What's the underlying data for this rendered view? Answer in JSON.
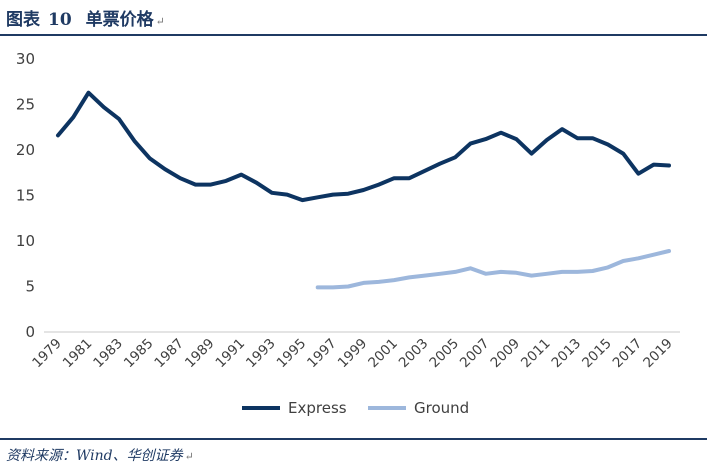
{
  "header": {
    "figure_label": "图表",
    "figure_number": "10",
    "title": "单票价格",
    "para_mark": "↵"
  },
  "footer": {
    "source": "资料来源：Wind、华创证券",
    "para_mark": "↵"
  },
  "chart_data": {
    "type": "line",
    "ylim": [
      0,
      30
    ],
    "yticks": [
      0,
      5,
      10,
      15,
      20,
      25,
      30
    ],
    "xlim": [
      1979,
      2019
    ],
    "xticks": [
      "1979",
      "1981",
      "1983",
      "1985",
      "1987",
      "1989",
      "1991",
      "1993",
      "1995",
      "1997",
      "1999",
      "2001",
      "2003",
      "2005",
      "2007",
      "2009",
      "2011",
      "2013",
      "2015",
      "2017",
      "2019"
    ],
    "grid": false,
    "legend_position": "bottom-center",
    "series": [
      {
        "name": "Express",
        "color": "#0d3461",
        "points": [
          [
            1979,
            21.6
          ],
          [
            1980,
            23.6
          ],
          [
            1981,
            26.3
          ],
          [
            1982,
            24.7
          ],
          [
            1983,
            23.4
          ],
          [
            1984,
            21.0
          ],
          [
            1985,
            19.1
          ],
          [
            1986,
            17.9
          ],
          [
            1987,
            16.9
          ],
          [
            1988,
            16.2
          ],
          [
            1989,
            16.2
          ],
          [
            1990,
            16.6
          ],
          [
            1991,
            17.3
          ],
          [
            1992,
            16.4
          ],
          [
            1993,
            15.3
          ],
          [
            1994,
            15.1
          ],
          [
            1995,
            14.5
          ],
          [
            1996,
            14.8
          ],
          [
            1997,
            15.1
          ],
          [
            1998,
            15.2
          ],
          [
            1999,
            15.6
          ],
          [
            2000,
            16.2
          ],
          [
            2001,
            16.9
          ],
          [
            2002,
            16.9
          ],
          [
            2003,
            17.7
          ],
          [
            2004,
            18.5
          ],
          [
            2005,
            19.2
          ],
          [
            2006,
            20.7
          ],
          [
            2007,
            21.2
          ],
          [
            2008,
            21.9
          ],
          [
            2009,
            21.2
          ],
          [
            2010,
            19.6
          ],
          [
            2011,
            21.1
          ],
          [
            2012,
            22.3
          ],
          [
            2013,
            21.3
          ],
          [
            2014,
            21.3
          ],
          [
            2015,
            20.6
          ],
          [
            2016,
            19.6
          ],
          [
            2017,
            17.4
          ],
          [
            2018,
            18.4
          ],
          [
            2019,
            18.3
          ]
        ]
      },
      {
        "name": "Ground",
        "color": "#9db7dc",
        "points": [
          [
            1996,
            4.9
          ],
          [
            1997,
            4.9
          ],
          [
            1998,
            5.0
          ],
          [
            1999,
            5.4
          ],
          [
            2000,
            5.5
          ],
          [
            2001,
            5.7
          ],
          [
            2002,
            6.0
          ],
          [
            2003,
            6.2
          ],
          [
            2004,
            6.4
          ],
          [
            2005,
            6.6
          ],
          [
            2006,
            7.0
          ],
          [
            2007,
            6.4
          ],
          [
            2008,
            6.6
          ],
          [
            2009,
            6.5
          ],
          [
            2010,
            6.2
          ],
          [
            2011,
            6.4
          ],
          [
            2012,
            6.6
          ],
          [
            2013,
            6.6
          ],
          [
            2014,
            6.7
          ],
          [
            2015,
            7.1
          ],
          [
            2016,
            7.8
          ],
          [
            2017,
            8.1
          ],
          [
            2018,
            8.5
          ],
          [
            2019,
            8.9
          ]
        ]
      }
    ]
  }
}
